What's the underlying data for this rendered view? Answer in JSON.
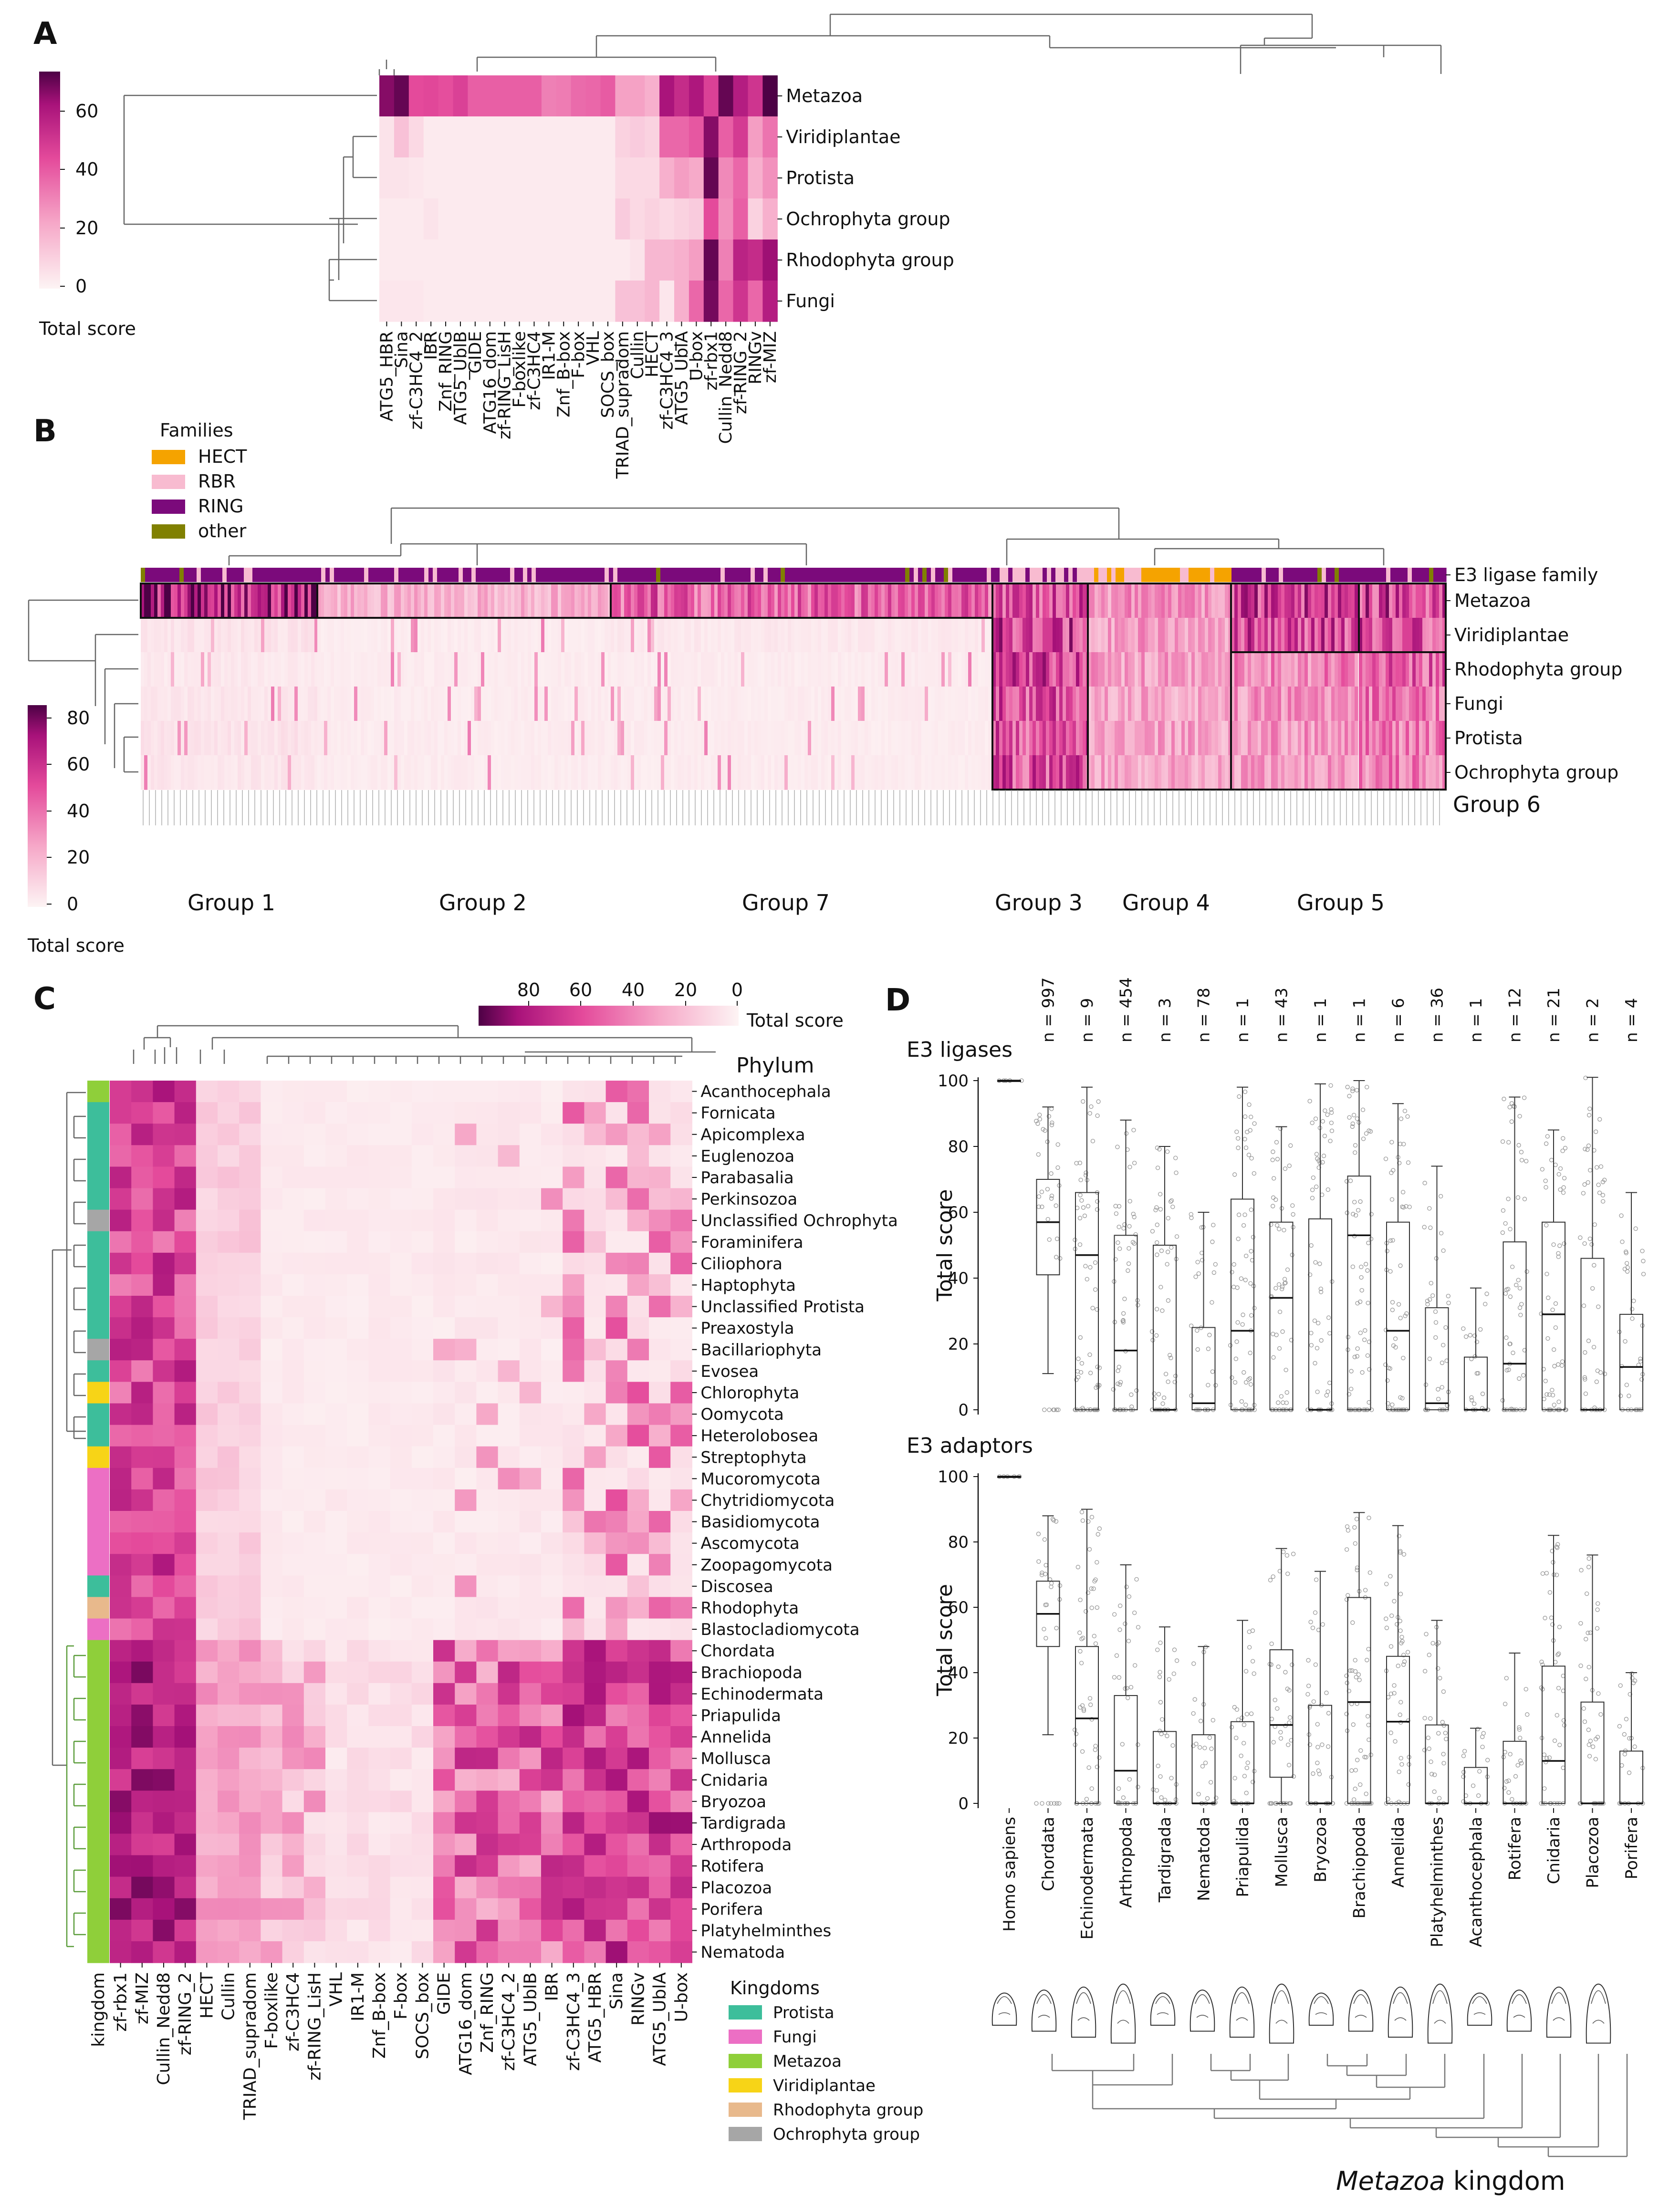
{
  "panels": {
    "a": "A",
    "b": "B",
    "c": "C",
    "d": "D"
  },
  "colorbar": {
    "title": "Total score",
    "a_ticks": [
      "60",
      "40",
      "20",
      "0"
    ],
    "b_ticks": [
      "80",
      "60",
      "40",
      "20",
      "0"
    ],
    "c_ticks": [
      "80",
      "60",
      "40",
      "20",
      "0"
    ]
  },
  "palette": {
    "low": "#fcecec",
    "mid": "#e44a9b",
    "high": "#4d0145"
  },
  "chart_data": [
    {
      "id": "A",
      "type": "heatmap",
      "title": "",
      "colorbar_label": "Total score",
      "zlim": [
        0,
        75
      ],
      "rows": [
        "Metazoa",
        "Viridiplantae",
        "Protista",
        "Ochrophyta group",
        "Rhodophyta group",
        "Fungi"
      ],
      "columns": [
        "ATG5_HBR",
        "Sina",
        "zf-C3HC4_2",
        "IBR",
        "Znf_RING",
        "ATG5_UblB",
        "GIDE",
        "ATG16_dom",
        "zf-RING_LisH",
        "F-boxlike",
        "zf-C3HC4",
        "IR1-M",
        "Znf_B-box",
        "F-box",
        "VHL",
        "SOCS_box",
        "TRIAD_supradom",
        "Cullin",
        "HECT",
        "zf-C3HC4_3",
        "ATG5_UblA",
        "U-box",
        "zf-rbx1",
        "Cullin_Nedd8",
        "zf-RING_2",
        "RINGv",
        "zf-MIZ"
      ],
      "values": [
        [
          68,
          72,
          45,
          46,
          44,
          48,
          40,
          40,
          40,
          40,
          40,
          32,
          33,
          37,
          38,
          41,
          24,
          24,
          20,
          63,
          55,
          62,
          48,
          72,
          60,
          52,
          75
        ],
        [
          5,
          15,
          8,
          3,
          3,
          3,
          3,
          3,
          3,
          3,
          3,
          3,
          3,
          3,
          3,
          3,
          10,
          12,
          10,
          38,
          38,
          42,
          68,
          40,
          50,
          25,
          35
        ],
        [
          5,
          5,
          4,
          3,
          3,
          3,
          3,
          3,
          3,
          3,
          3,
          3,
          3,
          3,
          3,
          3,
          8,
          8,
          8,
          20,
          25,
          22,
          72,
          30,
          38,
          20,
          28
        ],
        [
          3,
          3,
          3,
          5,
          3,
          3,
          3,
          3,
          3,
          3,
          3,
          3,
          3,
          3,
          3,
          3,
          12,
          8,
          10,
          8,
          10,
          12,
          45,
          28,
          40,
          10,
          20
        ],
        [
          3,
          3,
          3,
          3,
          3,
          3,
          3,
          3,
          3,
          3,
          3,
          3,
          3,
          3,
          3,
          3,
          3,
          5,
          18,
          18,
          20,
          25,
          72,
          32,
          58,
          55,
          65
        ],
        [
          4,
          4,
          4,
          3,
          3,
          3,
          3,
          3,
          3,
          3,
          3,
          3,
          3,
          3,
          3,
          3,
          15,
          15,
          18,
          4,
          20,
          38,
          70,
          38,
          52,
          38,
          60
        ]
      ]
    },
    {
      "id": "B",
      "type": "heatmap",
      "colorbar_label": "Total score",
      "zlim": [
        0,
        85
      ],
      "rows": [
        "Metazoa",
        "Viridiplantae",
        "Rhodophyta group",
        "Fungi",
        "Protista",
        "Ochrophyta group"
      ],
      "annotation_row": "E3 ligase family",
      "families_title": "Families",
      "families": [
        {
          "name": "HECT",
          "color": "#f5a300"
        },
        {
          "name": "RBR",
          "color": "#f8bbd0"
        },
        {
          "name": "RING",
          "color": "#7b0a7b"
        },
        {
          "name": "other",
          "color": "#808000"
        }
      ],
      "groups": [
        {
          "name": "Group 1",
          "row_levels": [
            72,
            6,
            4,
            5,
            6,
            5
          ]
        },
        {
          "name": "Group 2",
          "row_levels": [
            22,
            3,
            3,
            3,
            3,
            3
          ]
        },
        {
          "name": "Group 7",
          "row_levels": [
            45,
            4,
            3,
            3,
            3,
            3
          ]
        },
        {
          "name": "Group 3",
          "row_levels": [
            50,
            55,
            55,
            50,
            50,
            52
          ]
        },
        {
          "name": "Group 4",
          "row_levels": [
            30,
            28,
            28,
            25,
            26,
            25
          ]
        },
        {
          "name": "Group 5",
          "row_levels": [
            55,
            52,
            35,
            30,
            30,
            28
          ]
        },
        {
          "name": "Group 6",
          "row_levels": [
            55,
            52,
            45,
            40,
            38,
            38
          ]
        }
      ]
    },
    {
      "id": "C",
      "type": "heatmap",
      "colorbar_label": "Total score",
      "zlim": [
        0,
        85
      ],
      "row_header": "Phylum",
      "annotation_column": "kingdom",
      "kingdoms_title": "Kingdoms",
      "kingdoms": [
        {
          "name": "Protista",
          "color": "#3dbe9b"
        },
        {
          "name": "Fungi",
          "color": "#ec6fc4"
        },
        {
          "name": "Metazoa",
          "color": "#8fcf3a"
        },
        {
          "name": "Viridiplantae",
          "color": "#f7d417"
        },
        {
          "name": "Rhodophyta group",
          "color": "#e8b98c"
        },
        {
          "name": "Ochrophyta group",
          "color": "#a6a6a6"
        }
      ],
      "columns": [
        "zf-rbx1",
        "zf-MIZ",
        "Cullin_Nedd8",
        "zf-RING_2",
        "HECT",
        "Cullin",
        "TRIAD_supradom",
        "F-boxlike",
        "zf-C3HC4",
        "zf-RING_LisH",
        "VHL",
        "IR1-M",
        "Znf_B-box",
        "F-box",
        "SOCS_box",
        "GIDE",
        "ATG16_dom",
        "Znf_RING",
        "zf-C3HC4_2",
        "ATG5_UblB",
        "IBR",
        "zf-C3HC4_3",
        "ATG5_HBR",
        "Sina",
        "RINGv",
        "ATG5_UblA",
        "U-box"
      ],
      "rows": [
        {
          "phylum": "Acanthocephala",
          "kingdom": "Metazoa"
        },
        {
          "phylum": "Fornicata",
          "kingdom": "Protista"
        },
        {
          "phylum": "Apicomplexa",
          "kingdom": "Protista"
        },
        {
          "phylum": "Euglenozoa",
          "kingdom": "Protista"
        },
        {
          "phylum": "Parabasalia",
          "kingdom": "Protista"
        },
        {
          "phylum": "Perkinsozoa",
          "kingdom": "Protista"
        },
        {
          "phylum": "Unclassified Ochrophyta",
          "kingdom": "Ochrophyta group"
        },
        {
          "phylum": "Foraminifera",
          "kingdom": "Protista"
        },
        {
          "phylum": "Ciliophora",
          "kingdom": "Protista"
        },
        {
          "phylum": "Haptophyta",
          "kingdom": "Protista"
        },
        {
          "phylum": "Unclassified Protista",
          "kingdom": "Protista"
        },
        {
          "phylum": "Preaxostyla",
          "kingdom": "Protista"
        },
        {
          "phylum": "Bacillariophyta",
          "kingdom": "Ochrophyta group"
        },
        {
          "phylum": "Evosea",
          "kingdom": "Protista"
        },
        {
          "phylum": "Chlorophyta",
          "kingdom": "Viridiplantae"
        },
        {
          "phylum": "Oomycota",
          "kingdom": "Protista"
        },
        {
          "phylum": "Heterolobosea",
          "kingdom": "Protista"
        },
        {
          "phylum": "Streptophyta",
          "kingdom": "Viridiplantae"
        },
        {
          "phylum": "Mucoromycota",
          "kingdom": "Fungi"
        },
        {
          "phylum": "Chytridiomycota",
          "kingdom": "Fungi"
        },
        {
          "phylum": "Basidiomycota",
          "kingdom": "Fungi"
        },
        {
          "phylum": "Ascomycota",
          "kingdom": "Fungi"
        },
        {
          "phylum": "Zoopagomycota",
          "kingdom": "Fungi"
        },
        {
          "phylum": "Discosea",
          "kingdom": "Protista"
        },
        {
          "phylum": "Rhodophyta",
          "kingdom": "Rhodophyta group"
        },
        {
          "phylum": "Blastocladiomycota",
          "kingdom": "Fungi"
        },
        {
          "phylum": "Chordata",
          "kingdom": "Metazoa"
        },
        {
          "phylum": "Brachiopoda",
          "kingdom": "Metazoa"
        },
        {
          "phylum": "Echinodermata",
          "kingdom": "Metazoa"
        },
        {
          "phylum": "Priapulida",
          "kingdom": "Metazoa"
        },
        {
          "phylum": "Annelida",
          "kingdom": "Metazoa"
        },
        {
          "phylum": "Mollusca",
          "kingdom": "Metazoa"
        },
        {
          "phylum": "Cnidaria",
          "kingdom": "Metazoa"
        },
        {
          "phylum": "Bryozoa",
          "kingdom": "Metazoa"
        },
        {
          "phylum": "Tardigrada",
          "kingdom": "Metazoa"
        },
        {
          "phylum": "Arthropoda",
          "kingdom": "Metazoa"
        },
        {
          "phylum": "Rotifera",
          "kingdom": "Metazoa"
        },
        {
          "phylum": "Placozoa",
          "kingdom": "Metazoa"
        },
        {
          "phylum": "Porifera",
          "kingdom": "Metazoa"
        },
        {
          "phylum": "Platyhelminthes",
          "kingdom": "Metazoa"
        },
        {
          "phylum": "Nematoda",
          "kingdom": "Metazoa"
        }
      ]
    },
    {
      "id": "D1",
      "type": "box",
      "title": "E3 ligases",
      "ylabel": "Total score",
      "ylim": [
        0,
        100
      ],
      "yticks": [
        "0",
        "20",
        "40",
        "60",
        "80",
        "100"
      ],
      "categories": [
        "Homo sapiens",
        "Chordata",
        "Echinodermata",
        "Arthropoda",
        "Tardigrada",
        "Nematoda",
        "Priapulida",
        "Mollusca",
        "Bryozoa",
        "Brachiopoda",
        "Annelida",
        "Platyhelminthes",
        "Acanthocephala",
        "Rotifera",
        "Cnidaria",
        "Placozoa",
        "Porifera"
      ],
      "n_labels": [
        "",
        "n = 997",
        "n = 9",
        "n = 454",
        "n = 3",
        "n = 78",
        "n = 1",
        "n = 43",
        "n = 1",
        "n = 1",
        "n = 6",
        "n = 36",
        "n = 1",
        "n = 12",
        "n = 21",
        "n = 2",
        "n = 4"
      ],
      "boxes": [
        {
          "min": 100,
          "q1": 100,
          "median": 100,
          "q3": 100,
          "max": 100
        },
        {
          "min": 11,
          "q1": 41,
          "median": 57,
          "q3": 70,
          "max": 92
        },
        {
          "min": 0,
          "q1": 0,
          "median": 47,
          "q3": 66,
          "max": 98
        },
        {
          "min": 0,
          "q1": 0,
          "median": 18,
          "q3": 53,
          "max": 88
        },
        {
          "min": 0,
          "q1": 0,
          "median": 0,
          "q3": 50,
          "max": 80
        },
        {
          "min": 0,
          "q1": 0,
          "median": 2,
          "q3": 25,
          "max": 60
        },
        {
          "min": 0,
          "q1": 0,
          "median": 24,
          "q3": 64,
          "max": 98
        },
        {
          "min": 0,
          "q1": 0,
          "median": 34,
          "q3": 57,
          "max": 86
        },
        {
          "min": 0,
          "q1": 0,
          "median": 0,
          "q3": 58,
          "max": 99
        },
        {
          "min": 0,
          "q1": 0,
          "median": 53,
          "q3": 71,
          "max": 100
        },
        {
          "min": 0,
          "q1": 0,
          "median": 24,
          "q3": 57,
          "max": 93
        },
        {
          "min": 0,
          "q1": 0,
          "median": 2,
          "q3": 31,
          "max": 74
        },
        {
          "min": 0,
          "q1": 0,
          "median": 0,
          "q3": 16,
          "max": 37
        },
        {
          "min": 0,
          "q1": 0,
          "median": 14,
          "q3": 51,
          "max": 95
        },
        {
          "min": 0,
          "q1": 0,
          "median": 29,
          "q3": 57,
          "max": 85
        },
        {
          "min": 0,
          "q1": 0,
          "median": 0,
          "q3": 46,
          "max": 101
        },
        {
          "min": 0,
          "q1": 0,
          "median": 13,
          "q3": 29,
          "max": 66
        }
      ]
    },
    {
      "id": "D2",
      "type": "box",
      "title": "E3 adaptors",
      "ylabel": "Total score",
      "ylim": [
        0,
        100
      ],
      "yticks": [
        "0",
        "20",
        "40",
        "60",
        "80",
        "100"
      ],
      "categories": [
        "Homo sapiens",
        "Chordata",
        "Echinodermata",
        "Arthropoda",
        "Tardigrada",
        "Nematoda",
        "Priapulida",
        "Mollusca",
        "Bryozoa",
        "Brachiopoda",
        "Annelida",
        "Platyhelminthes",
        "Acanthocephala",
        "Rotifera",
        "Cnidaria",
        "Placozoa",
        "Porifera"
      ],
      "boxes": [
        {
          "min": 100,
          "q1": 100,
          "median": 100,
          "q3": 100,
          "max": 100
        },
        {
          "min": 21,
          "q1": 48,
          "median": 58,
          "q3": 68,
          "max": 88
        },
        {
          "min": 0,
          "q1": 0,
          "median": 26,
          "q3": 48,
          "max": 90
        },
        {
          "min": 0,
          "q1": 0,
          "median": 10,
          "q3": 33,
          "max": 73
        },
        {
          "min": 0,
          "q1": 0,
          "median": 0,
          "q3": 22,
          "max": 54
        },
        {
          "min": 0,
          "q1": 0,
          "median": 0,
          "q3": 21,
          "max": 48
        },
        {
          "min": 0,
          "q1": 0,
          "median": 0,
          "q3": 25,
          "max": 56
        },
        {
          "min": 0,
          "q1": 8,
          "median": 24,
          "q3": 47,
          "max": 78
        },
        {
          "min": 0,
          "q1": 0,
          "median": 0,
          "q3": 30,
          "max": 71
        },
        {
          "min": 0,
          "q1": 0,
          "median": 31,
          "q3": 63,
          "max": 89
        },
        {
          "min": 0,
          "q1": 0,
          "median": 25,
          "q3": 45,
          "max": 85
        },
        {
          "min": 0,
          "q1": 0,
          "median": 0,
          "q3": 24,
          "max": 56
        },
        {
          "min": 0,
          "q1": 0,
          "median": 0,
          "q3": 11,
          "max": 23
        },
        {
          "min": 0,
          "q1": 0,
          "median": 0,
          "q3": 19,
          "max": 46
        },
        {
          "min": 0,
          "q1": 0,
          "median": 13,
          "q3": 42,
          "max": 82
        },
        {
          "min": 0,
          "q1": 0,
          "median": 0,
          "q3": 31,
          "max": 76
        },
        {
          "min": 0,
          "q1": 0,
          "median": 0,
          "q3": 16,
          "max": 40
        }
      ],
      "footer": {
        "italic": "Metazoa",
        "rest": " kingdom"
      }
    }
  ]
}
